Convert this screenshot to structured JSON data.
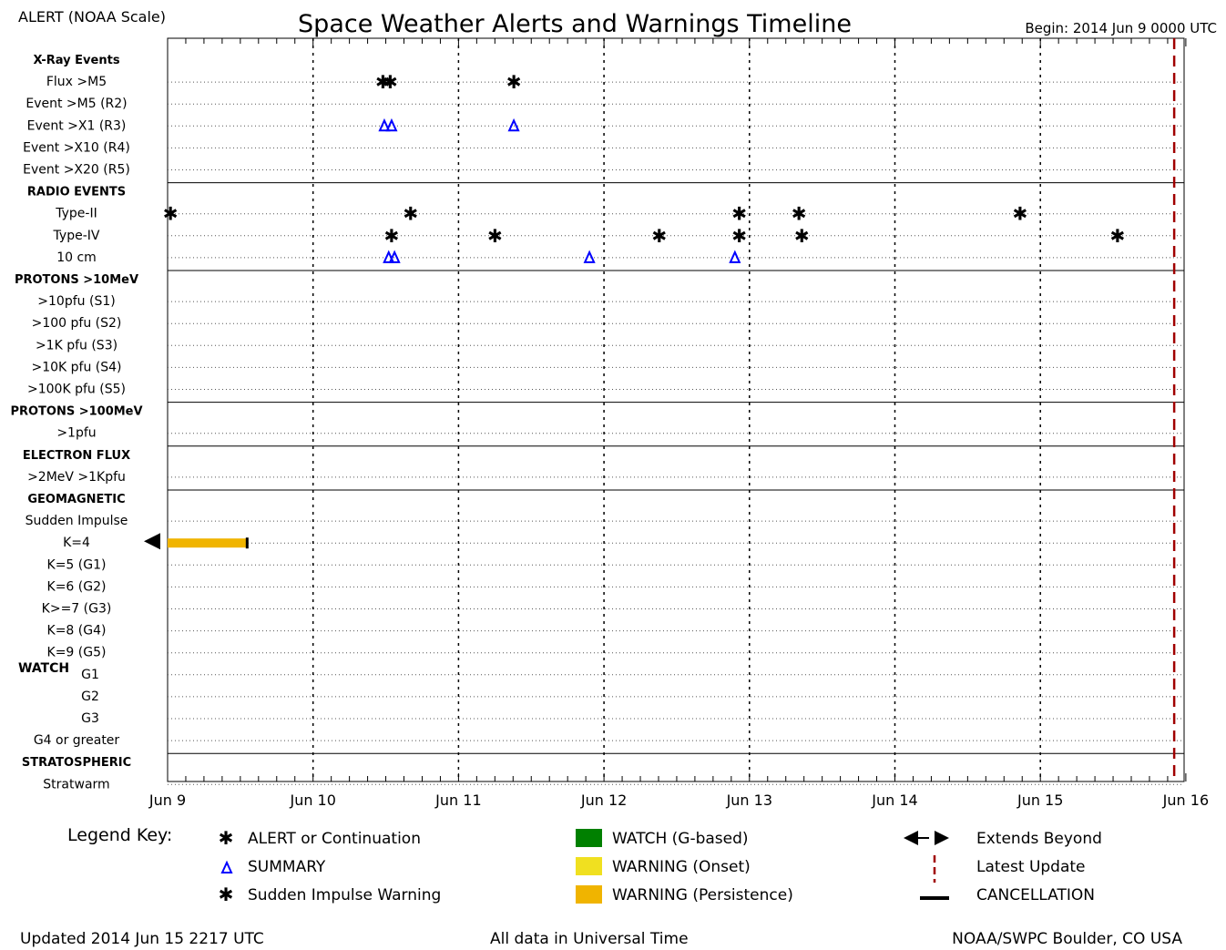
{
  "header": {
    "scale_label": "ALERT (NOAA Scale)",
    "title": "Space Weather Alerts and Warnings Timeline",
    "begin": "Begin: 2014 Jun 9 0000 UTC"
  },
  "row_labels": [
    {
      "text": "X-Ray Events",
      "bold": true
    },
    {
      "text": "Flux >M5"
    },
    {
      "text": "Event >M5 (R2)"
    },
    {
      "text": "Event >X1 (R3)"
    },
    {
      "text": "Event >X10 (R4)"
    },
    {
      "text": "Event >X20 (R5)"
    },
    {
      "text": "RADIO EVENTS",
      "bold": true
    },
    {
      "text": "Type-II"
    },
    {
      "text": "Type-IV"
    },
    {
      "text": "10 cm"
    },
    {
      "text": "PROTONS >10MeV",
      "bold": true
    },
    {
      "text": ">10pfu (S1)"
    },
    {
      "text": ">100 pfu (S2)"
    },
    {
      "text": ">1K pfu (S3)"
    },
    {
      "text": ">10K pfu (S4)"
    },
    {
      "text": ">100K pfu (S5)"
    },
    {
      "text": "PROTONS >100MeV",
      "bold": true
    },
    {
      "text": ">1pfu"
    },
    {
      "text": "ELECTRON FLUX",
      "bold": true
    },
    {
      "text": ">2MeV >1Kpfu"
    },
    {
      "text": "GEOMAGNETIC",
      "bold": true
    },
    {
      "text": "Sudden Impulse"
    },
    {
      "text": "K=4"
    },
    {
      "text": "K=5 (G1)"
    },
    {
      "text": "K=6 (G2)"
    },
    {
      "text": "K>=7 (G3)"
    },
    {
      "text": "K=8 (G4)"
    },
    {
      "text": "K=9 (G5)"
    },
    {
      "text": "G1"
    },
    {
      "text": "G2"
    },
    {
      "text": "G3"
    },
    {
      "text": "G4 or greater"
    },
    {
      "text": "STRATOSPHERIC",
      "bold": true
    },
    {
      "text": "Stratwarm"
    }
  ],
  "watch_label": "WATCH",
  "chart_data": {
    "type": "scatter",
    "title": "Space Weather Alerts and Warnings Timeline",
    "x_unit": "days since 2014 Jun 9 0000 UTC",
    "xlim": [
      0,
      7
    ],
    "x_ticks": [
      "Jun 9",
      "Jun 10",
      "Jun 11",
      "Jun 12",
      "Jun 13",
      "Jun 14",
      "Jun 15",
      "Jun 16"
    ],
    "latest_update": 6.92,
    "events": [
      {
        "row": "Flux >M5",
        "kind": "alert",
        "x": [
          1.48,
          1.53,
          2.38
        ]
      },
      {
        "row": "Event >X1 (R3)",
        "kind": "summary",
        "x": [
          1.49,
          1.54,
          2.38
        ]
      },
      {
        "row": "Type-II",
        "kind": "alert",
        "x": [
          0.02,
          1.67,
          3.93,
          4.34,
          5.86
        ]
      },
      {
        "row": "Type-IV",
        "kind": "alert",
        "x": [
          1.54,
          2.25,
          3.38,
          3.93,
          4.36,
          6.53
        ]
      },
      {
        "row": "10 cm",
        "kind": "summary",
        "x": [
          1.52,
          1.56,
          2.9,
          3.9
        ]
      }
    ],
    "bars": [
      {
        "row": "K=4",
        "kind": "warning-persistence",
        "start": 0,
        "end": 0.55,
        "extends_before": true,
        "cancelled": true
      }
    ]
  },
  "legend": {
    "title": "Legend Key:",
    "items": [
      {
        "symbol": "alert",
        "label": "ALERT or Continuation"
      },
      {
        "symbol": "summary",
        "label": "SUMMARY"
      },
      {
        "symbol": "sudden",
        "label": "Sudden Impulse Warning"
      },
      {
        "symbol": "watch",
        "label": "WATCH (G-based)"
      },
      {
        "symbol": "warning-onset",
        "label": "WARNING (Onset)"
      },
      {
        "symbol": "warning-persistence",
        "label": "WARNING (Persistence)"
      },
      {
        "symbol": "extends",
        "label": "Extends Beyond"
      },
      {
        "symbol": "latest",
        "label": "Latest Update"
      },
      {
        "symbol": "cancel",
        "label": "CANCELLATION"
      }
    ]
  },
  "colors": {
    "alert": "#ff0000",
    "summary": "#0000ff",
    "sudden": "#f0e020",
    "watch": "#008000",
    "warning-onset": "#f0e020",
    "warning-persistence": "#f0b400",
    "latest": "#a00000"
  },
  "footer": {
    "updated": "Updated 2014 Jun 15 2217 UTC",
    "note": "All data in Universal Time",
    "credit": "NOAA/SWPC Boulder, CO USA"
  }
}
